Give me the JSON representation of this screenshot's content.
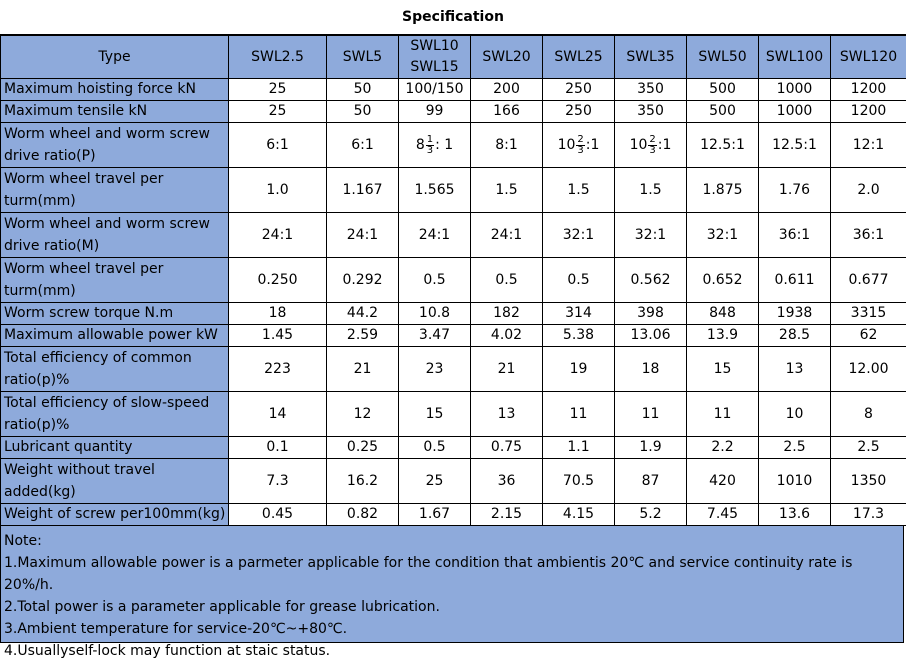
{
  "title": "Specification",
  "header": {
    "type_label": "Type",
    "models": [
      "SWL2.5",
      "SWL5",
      "SWL10\nSWL15",
      "SWL20",
      "SWL25",
      "SWL35",
      "SWL50",
      "SWL100",
      "SWL120"
    ],
    "model_line1": [
      "SWL2.5",
      "SWL5",
      "SWL10",
      "SWL20",
      "SWL25",
      "SWL35",
      "SWL50",
      "SWL100",
      "SWL120"
    ],
    "model_line2": [
      "",
      "",
      "SWL15",
      "",
      "",
      "",
      "",
      "",
      ""
    ]
  },
  "rows": [
    {
      "label": "Maximum hoisting force kN",
      "values": [
        "25",
        "50",
        "100/150",
        "200",
        "250",
        "350",
        "500",
        "1000",
        "1200"
      ]
    },
    {
      "label": "Maximum tensile kN",
      "values": [
        "25",
        "50",
        "99",
        "166",
        "250",
        "350",
        "500",
        "1000",
        "1200"
      ]
    },
    {
      "label": "Worm wheel and worm screw drive ratio(P)",
      "values": [
        "6:1",
        "6:1",
        "8 1/3 : 1",
        "8:1",
        "10 2/3 :1",
        "10 2/3 :1",
        "12.5:1",
        "12.5:1",
        "12:1"
      ]
    },
    {
      "label": "Worm wheel travel per turm(mm)",
      "values": [
        "1.0",
        "1.167",
        "1.565",
        "1.5",
        "1.5",
        "1.5",
        "1.875",
        "1.76",
        "2.0"
      ]
    },
    {
      "label": "Worm wheel and worm screw drive ratio(M)",
      "values": [
        "24:1",
        "24:1",
        "24:1",
        "24:1",
        "32:1",
        "32:1",
        "32:1",
        "36:1",
        "36:1"
      ]
    },
    {
      "label": "Worm wheel travel per turm(mm)",
      "values": [
        "0.250",
        "0.292",
        "0.5",
        "0.5",
        "0.5",
        "0.562",
        "0.652",
        "0.611",
        "0.677"
      ]
    },
    {
      "label": "Worm screw torque N.m",
      "values": [
        "18",
        "44.2",
        "10.8",
        "182",
        "314",
        "398",
        "848",
        "1938",
        "3315"
      ]
    },
    {
      "label": "Maximum allowable power kW",
      "values": [
        "1.45",
        "2.59",
        "3.47",
        "4.02",
        "5.38",
        "13.06",
        "13.9",
        "28.5",
        "62"
      ]
    },
    {
      "label": "Total efficiency of common ratio(p)%",
      "values": [
        "223",
        "21",
        "23",
        "21",
        "19",
        "18",
        "15",
        "13",
        "12.00"
      ]
    },
    {
      "label": "Total efficiency of slow-speed ratio(p)%",
      "values": [
        "14",
        "12",
        "15",
        "13",
        "11",
        "11",
        "11",
        "10",
        "8"
      ]
    },
    {
      "label": "Lubricant quantity",
      "values": [
        "0.1",
        "0.25",
        "0.5",
        "0.75",
        "1.1",
        "1.9",
        "2.2",
        "2.5",
        "2.5"
      ]
    },
    {
      "label": "Weight without travel added(kg)",
      "values": [
        "7.3",
        "16.2",
        "25",
        "36",
        "70.5",
        "87",
        "420",
        "1010",
        "1350"
      ]
    },
    {
      "label": "Weight of screw per100mm(kg)",
      "values": [
        "0.45",
        "0.82",
        "1.67",
        "2.15",
        "4.15",
        "5.2",
        "7.45",
        "13.6",
        "17.3"
      ]
    }
  ],
  "fractions": {
    "swl10_ratio": {
      "whole": "8",
      "num": "1",
      "den": "3",
      "tail": ": 1"
    },
    "swl25_ratio": {
      "whole": "10",
      "num": "2",
      "den": "3",
      "tail": ":1"
    },
    "swl35_ratio": {
      "whole": "10",
      "num": "2",
      "den": "3",
      "tail": ":1"
    }
  },
  "notes": {
    "heading": "Note:",
    "lines": [
      "1.Maximum allowable power is a parmeter applicable for the condition that ambientis 20℃ and service continuity rate is 20%/h.",
      "2.Total power is a parameter applicable for grease lubrication.",
      "3.Ambient temperature for service-20℃~+80℃.",
      "4.Usuallyself-lock may function at staic status."
    ]
  },
  "colors": {
    "header_bg": "#8eaadb",
    "cell_bg": "#ffffff",
    "border": "#000000"
  }
}
